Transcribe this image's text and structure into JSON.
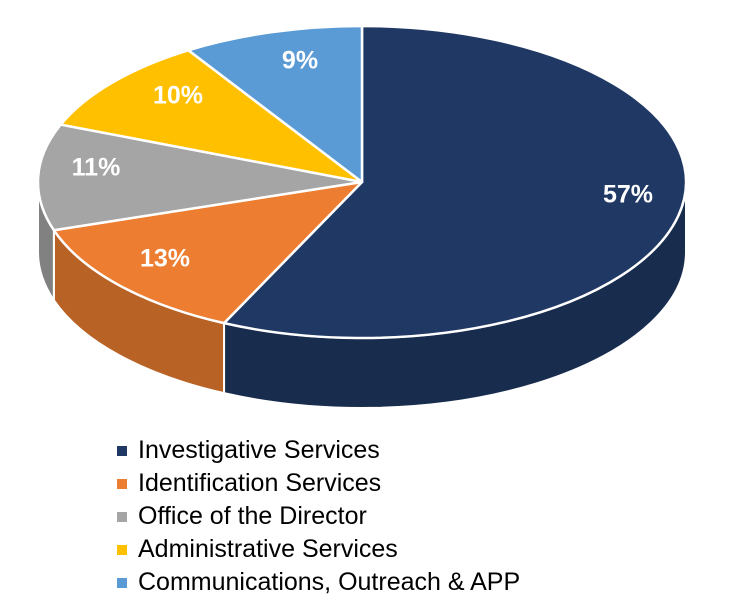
{
  "chart_data": {
    "type": "pie",
    "style": "3d-pie",
    "title": "",
    "categories": [
      "Investigative Services",
      "Identification Services",
      "Office of the Director",
      "Administrative Services",
      "Communications, Outreach & APP"
    ],
    "values": [
      57,
      13,
      11,
      10,
      9
    ],
    "unit": "%",
    "labels": [
      "57%",
      "13%",
      "11%",
      "10%",
      "9%"
    ],
    "colors": [
      "#1F3864",
      "#ED7D31",
      "#A5A5A5",
      "#FFC000",
      "#5B9BD5"
    ],
    "legend_position": "bottom",
    "start_angle": "12 o'clock, clockwise"
  },
  "legend": {
    "items": [
      {
        "label": "Investigative Services",
        "color": "#1F3864"
      },
      {
        "label": "Identification Services",
        "color": "#ED7D31"
      },
      {
        "label": "Office of the Director",
        "color": "#A5A5A5"
      },
      {
        "label": "Administrative Services",
        "color": "#FFC000"
      },
      {
        "label": "Communications, Outreach & APP",
        "color": "#5B9BD5"
      }
    ]
  }
}
